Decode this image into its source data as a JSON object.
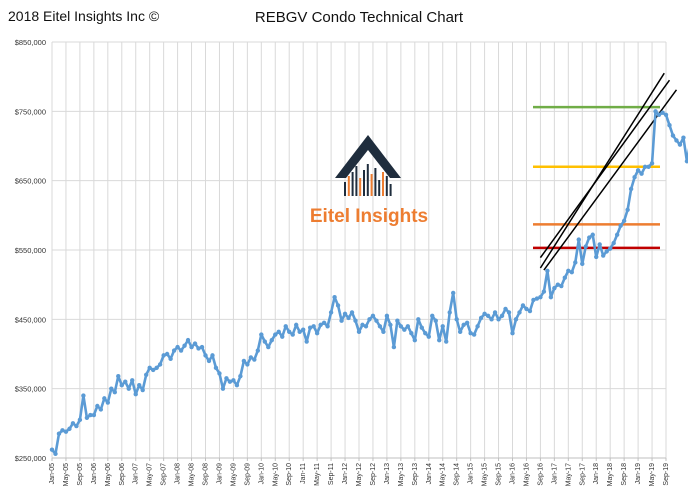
{
  "copyright": "2018 Eitel Insights Inc ©",
  "logo_text": "Eitel Insights",
  "colors": {
    "line": "#5b9bd5",
    "grid": "#d9d9d9",
    "axis_text": "#333333",
    "logo_dark": "#1f2d3d",
    "logo_orange": "#ed7d31",
    "channel": "#000000"
  },
  "chart_data": {
    "type": "line",
    "title": "REBGV Condo Technical Chart",
    "xlabel": "",
    "ylabel": "",
    "ylim": [
      250000,
      850000
    ],
    "yticks": [
      250000,
      350000,
      450000,
      550000,
      650000,
      750000,
      850000
    ],
    "ytick_labels": [
      "$250,000",
      "$350,000",
      "$450,000",
      "$550,000",
      "$650,000",
      "$750,000",
      "$850,000"
    ],
    "xtick_labels": [
      "Jan-05",
      "May-05",
      "Sep-05",
      "Jan-06",
      "May-06",
      "Sep-06",
      "Jan-07",
      "May-07",
      "Sep-07",
      "Jan-08",
      "May-08",
      "Sep-08",
      "Jan-09",
      "May-09",
      "Sep-09",
      "Jan-10",
      "May-10",
      "Sep-10",
      "Jan-11",
      "May-11",
      "Sep-11",
      "Jan-12",
      "May-12",
      "Sep-12",
      "Jan-13",
      "May-13",
      "Sep-13",
      "Jan-14",
      "May-14",
      "Sep-14",
      "Jan-15",
      "May-15",
      "Sep-15",
      "Jan-16",
      "May-16",
      "Sep-16",
      "Jan-17",
      "May-17",
      "Sep-17",
      "Jan-18",
      "May-18",
      "Sep-18",
      "Jan-19",
      "May-19",
      "Sep-19"
    ],
    "grid": true,
    "series": [
      {
        "values": [
          262000,
          256000,
          285000,
          290000,
          288000,
          292000,
          300000,
          296000,
          305000,
          340000,
          308000,
          312000,
          312000,
          325000,
          320000,
          336000,
          330000,
          350000,
          345000,
          368000,
          355000,
          360000,
          350000,
          362000,
          342000,
          355000,
          348000,
          370000,
          380000,
          377000,
          380000,
          385000,
          398000,
          400000,
          393000,
          405000,
          410000,
          405000,
          412000,
          420000,
          410000,
          415000,
          408000,
          410000,
          398000,
          390000,
          398000,
          380000,
          372000,
          350000,
          365000,
          360000,
          362000,
          355000,
          368000,
          390000,
          385000,
          395000,
          392000,
          405000,
          428000,
          418000,
          410000,
          420000,
          428000,
          432000,
          425000,
          440000,
          432000,
          428000,
          442000,
          432000,
          435000,
          418000,
          438000,
          440000,
          430000,
          442000,
          445000,
          440000,
          460000,
          482000,
          470000,
          448000,
          458000,
          452000,
          460000,
          448000,
          432000,
          442000,
          440000,
          450000,
          455000,
          448000,
          440000,
          432000,
          455000,
          442000,
          410000,
          448000,
          440000,
          435000,
          440000,
          430000,
          420000,
          450000,
          438000,
          430000,
          425000,
          455000,
          448000,
          420000,
          440000,
          418000,
          460000,
          488000,
          450000,
          432000,
          442000,
          445000,
          430000,
          428000,
          440000,
          452000,
          458000,
          455000,
          450000,
          460000,
          450000,
          455000,
          465000,
          460000,
          430000,
          450000,
          460000,
          470000,
          465000,
          462000,
          478000,
          480000,
          482000,
          490000,
          520000,
          482000,
          495000,
          500000,
          498000,
          510000,
          520000,
          518000,
          532000,
          565000,
          530000,
          555000,
          568000,
          572000,
          540000,
          558000,
          542000,
          548000,
          552000,
          560000,
          572000,
          585000,
          592000,
          608000,
          638000,
          655000,
          665000,
          660000,
          670000,
          670000,
          675000,
          750000,
          745000,
          748000,
          745000,
          730000,
          715000,
          708000,
          702000,
          712000,
          678000,
          706000
        ]
      }
    ],
    "horizontal_lines": [
      {
        "value": 756000,
        "color": "#70ad47"
      },
      {
        "value": 670000,
        "color": "#ffc000"
      },
      {
        "value": 587000,
        "color": "#ed7d31"
      },
      {
        "value": 553000,
        "color": "#c00000"
      }
    ],
    "channel_lines": [
      {
        "x_start": 140.0,
        "y_start": 524000,
        "x_end": 175.5,
        "y_end": 805000
      },
      {
        "x_start": 140.0,
        "y_start": 539000,
        "x_end": 177.0,
        "y_end": 795000
      },
      {
        "x_start": 141.0,
        "y_start": 521000,
        "x_end": 179.0,
        "y_end": 781000
      }
    ]
  }
}
